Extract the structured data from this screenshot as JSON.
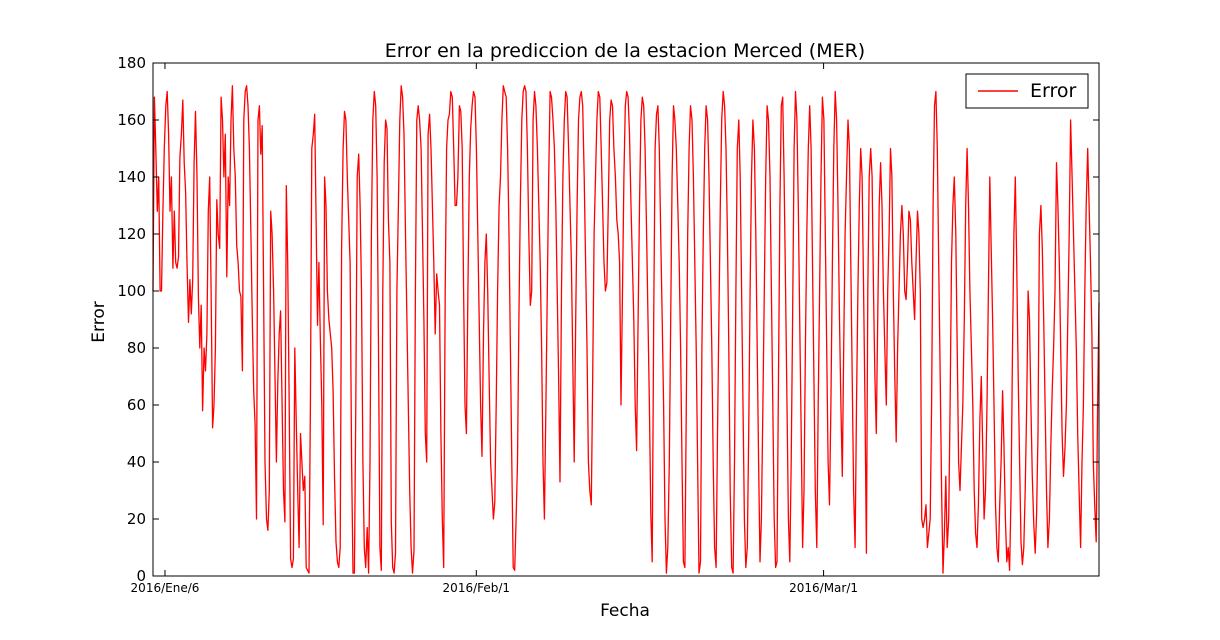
{
  "chart_data": {
    "type": "line",
    "title": "Error en la prediccion de la estacion Merced (MER)",
    "xlabel": "Fecha",
    "ylabel": "Error",
    "ylim": [
      0,
      180
    ],
    "yticks": [
      0,
      20,
      40,
      60,
      80,
      100,
      120,
      140,
      160,
      180
    ],
    "xlim": [
      "2016-01-05",
      "2016-03-24"
    ],
    "xticks": [
      {
        "date": "2016-01-06",
        "label": "2016/Ene/6"
      },
      {
        "date": "2016-02-01",
        "label": "2016/Feb/1"
      },
      {
        "date": "2016-03-01",
        "label": "2016/Mar/1"
      }
    ],
    "grid": false,
    "legend_position": "top-right",
    "series": [
      {
        "name": "Error",
        "color": "#ff0000",
        "resolution": "hourly",
        "x_start": "2016-01-05",
        "y": [
          100,
          168,
          150,
          128,
          140,
          100,
          100,
          128,
          150,
          165,
          170,
          155,
          128,
          140,
          108,
          128,
          110,
          108,
          112,
          147,
          155,
          167,
          145,
          135,
          110,
          89,
          104,
          92,
          104,
          145,
          163,
          140,
          98,
          80,
          95,
          58,
          80,
          72,
          85,
          128,
          140,
          100,
          52,
          60,
          80,
          132,
          120,
          115,
          168,
          160,
          140,
          155,
          105,
          140,
          130,
          160,
          172,
          150,
          140,
          116,
          110,
          100,
          98,
          72,
          160,
          170,
          172,
          165,
          150,
          120,
          90,
          65,
          53,
          20,
          160,
          165,
          148,
          158,
          100,
          40,
          20,
          16,
          30,
          128,
          120,
          100,
          70,
          40,
          68,
          85,
          93,
          60,
          30,
          19,
          137,
          110,
          60,
          6,
          3,
          6,
          80,
          55,
          30,
          10,
          50,
          40,
          30,
          35,
          3,
          2,
          1,
          60,
          150,
          155,
          162,
          125,
          88,
          110,
          82,
          60,
          18,
          140,
          130,
          100,
          90,
          85,
          80,
          65,
          35,
          12,
          5,
          3,
          10,
          115,
          150,
          163,
          160,
          140,
          125,
          110,
          40,
          1,
          1,
          60,
          140,
          148,
          130,
          100,
          40,
          10,
          3,
          17,
          1,
          40,
          120,
          160,
          170,
          165,
          140,
          80,
          10,
          2,
          100,
          145,
          160,
          157,
          125,
          110,
          19,
          3,
          1,
          8,
          100,
          130,
          160,
          172,
          168,
          155,
          120,
          90,
          60,
          30,
          10,
          1,
          9,
          100,
          160,
          165,
          160,
          150,
          120,
          90,
          50,
          40,
          155,
          162,
          150,
          130,
          110,
          85,
          106,
          100,
          95,
          50,
          20,
          3,
          100,
          150,
          160,
          162,
          170,
          168,
          150,
          130,
          130,
          140,
          165,
          163,
          150,
          100,
          60,
          50,
          100,
          140,
          157,
          165,
          170,
          168,
          150,
          120,
          90,
          60,
          42,
          85,
          110,
          120,
          100,
          70,
          40,
          30,
          20,
          26,
          60,
          100,
          130,
          140,
          160,
          172,
          170,
          168,
          150,
          120,
          80,
          40,
          3,
          2,
          20,
          40,
          90,
          130,
          160,
          170,
          172,
          170,
          150,
          120,
          95,
          100,
          160,
          170,
          165,
          150,
          130,
          110,
          80,
          40,
          20,
          60,
          100,
          140,
          170,
          168,
          160,
          150,
          130,
          100,
          70,
          33,
          100,
          140,
          160,
          170,
          168,
          150,
          130,
          110,
          75,
          40,
          90,
          130,
          160,
          168,
          170,
          165,
          140,
          110,
          80,
          40,
          30,
          25,
          70,
          120,
          140,
          160,
          170,
          168,
          150,
          130,
          110,
          100,
          103,
          130,
          160,
          167,
          165,
          150,
          140,
          125,
          120,
          110,
          60,
          100,
          140,
          165,
          170,
          168,
          155,
          130,
          110,
          90,
          60,
          44,
          90,
          130,
          160,
          168,
          165,
          150,
          120,
          90,
          60,
          22,
          5,
          90,
          150,
          162,
          165,
          150,
          120,
          90,
          60,
          20,
          1,
          10,
          40,
          90,
          140,
          165,
          160,
          150,
          130,
          110,
          80,
          40,
          5,
          3,
          60,
          120,
          150,
          165,
          160,
          140,
          110,
          80,
          40,
          1,
          5,
          80,
          120,
          150,
          165,
          160,
          140,
          110,
          80,
          40,
          10,
          3,
          50,
          90,
          130,
          160,
          170,
          165,
          150,
          120,
          80,
          30,
          3,
          1,
          40,
          100,
          150,
          160,
          140,
          100,
          60,
          20,
          3,
          10,
          50,
          100,
          140,
          160,
          150,
          120,
          80,
          40,
          5,
          20,
          60,
          100,
          140,
          165,
          160,
          140,
          100,
          60,
          20,
          3,
          5,
          70,
          130,
          165,
          168,
          140,
          100,
          60,
          20,
          5,
          40,
          90,
          150,
          170,
          160,
          130,
          90,
          50,
          10,
          30,
          80,
          120,
          150,
          165,
          150,
          110,
          70,
          30,
          10,
          60,
          100,
          140,
          168,
          160,
          120,
          80,
          40,
          25,
          60,
          110,
          150,
          170,
          160,
          130,
          90,
          60,
          35,
          80,
          120,
          140,
          160,
          150,
          110,
          70,
          30,
          10,
          60,
          100,
          130,
          150,
          140,
          100,
          60,
          8,
          100,
          140,
          150,
          140,
          100,
          70,
          50,
          90,
          130,
          145,
          130,
          100,
          80,
          60,
          100,
          120,
          150,
          140,
          100,
          70,
          47,
          80,
          100,
          120,
          130,
          120,
          100,
          97,
          110,
          128,
          125,
          110,
          100,
          90,
          110,
          128,
          120,
          100,
          20,
          17,
          20,
          25,
          10,
          15,
          20,
          60,
          130,
          165,
          170,
          150,
          110,
          70,
          30,
          1,
          15,
          35,
          10,
          20,
          60,
          110,
          130,
          140,
          120,
          80,
          40,
          30,
          45,
          60,
          90,
          130,
          150,
          130,
          100,
          80,
          60,
          30,
          15,
          10,
          25,
          55,
          70,
          45,
          20,
          30,
          60,
          100,
          140,
          115,
          90,
          60,
          25,
          10,
          5,
          25,
          40,
          65,
          45,
          20,
          5,
          10,
          2,
          30,
          80,
          120,
          140,
          110,
          70,
          40,
          12,
          4,
          10,
          30,
          60,
          100,
          90,
          60,
          35,
          18,
          8,
          22,
          50,
          120,
          130,
          115,
          90,
          60,
          30,
          10,
          20,
          45,
          65,
          80,
          100,
          145,
          130,
          110,
          80,
          50,
          35,
          45,
          60,
          90,
          120,
          160,
          140,
          120,
          100,
          80,
          50,
          30,
          10,
          40,
          60,
          100,
          130,
          150,
          130,
          110,
          85,
          40,
          25,
          12,
          60,
          96
        ]
      }
    ]
  }
}
